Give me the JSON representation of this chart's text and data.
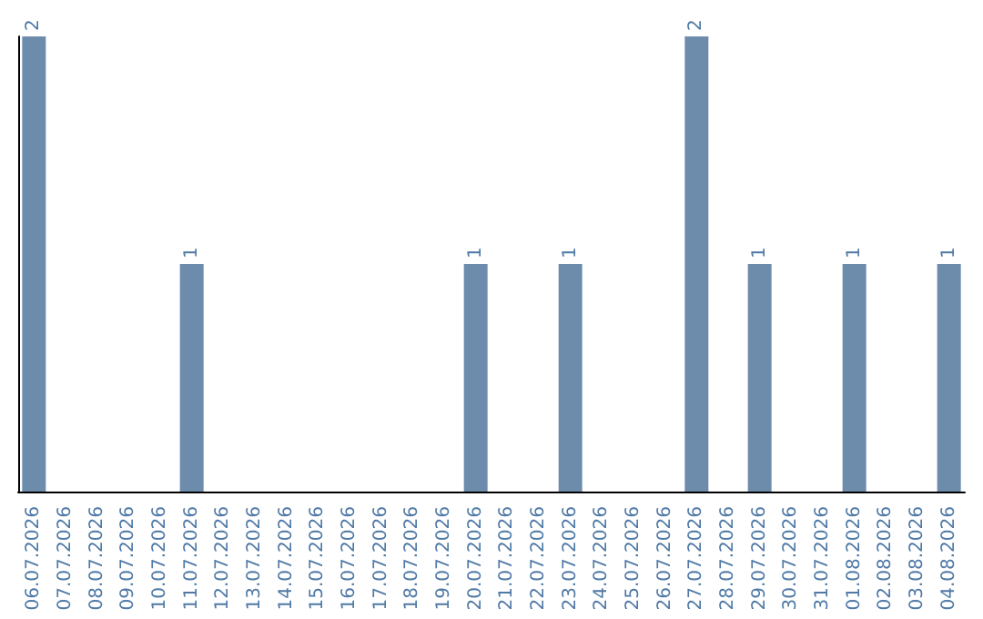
{
  "chart_data": {
    "type": "bar",
    "categories": [
      "06.07.2026",
      "07.07.2026",
      "08.07.2026",
      "09.07.2026",
      "10.07.2026",
      "11.07.2026",
      "12.07.2026",
      "13.07.2026",
      "14.07.2026",
      "15.07.2026",
      "16.07.2026",
      "17.07.2026",
      "18.07.2026",
      "19.07.2026",
      "20.07.2026",
      "21.07.2026",
      "22.07.2026",
      "23.07.2026",
      "24.07.2026",
      "25.07.2026",
      "26.07.2026",
      "27.07.2026",
      "28.07.2026",
      "29.07.2026",
      "30.07.2026",
      "31.07.2026",
      "01.08.2026",
      "02.08.2026",
      "03.08.2026",
      "04.08.2026"
    ],
    "values": [
      2,
      0,
      0,
      0,
      0,
      1,
      0,
      0,
      0,
      0,
      0,
      0,
      0,
      0,
      1,
      0,
      0,
      1,
      0,
      0,
      0,
      2,
      0,
      1,
      0,
      0,
      1,
      0,
      0,
      1
    ],
    "value_labels": [
      "2",
      null,
      null,
      null,
      null,
      "1",
      null,
      null,
      null,
      null,
      null,
      null,
      null,
      null,
      "1",
      null,
      null,
      "1",
      null,
      null,
      null,
      "2",
      null,
      "1",
      null,
      null,
      "1",
      null,
      null,
      "1"
    ],
    "color": "#6d8cab",
    "tick_labels": "x"
  }
}
